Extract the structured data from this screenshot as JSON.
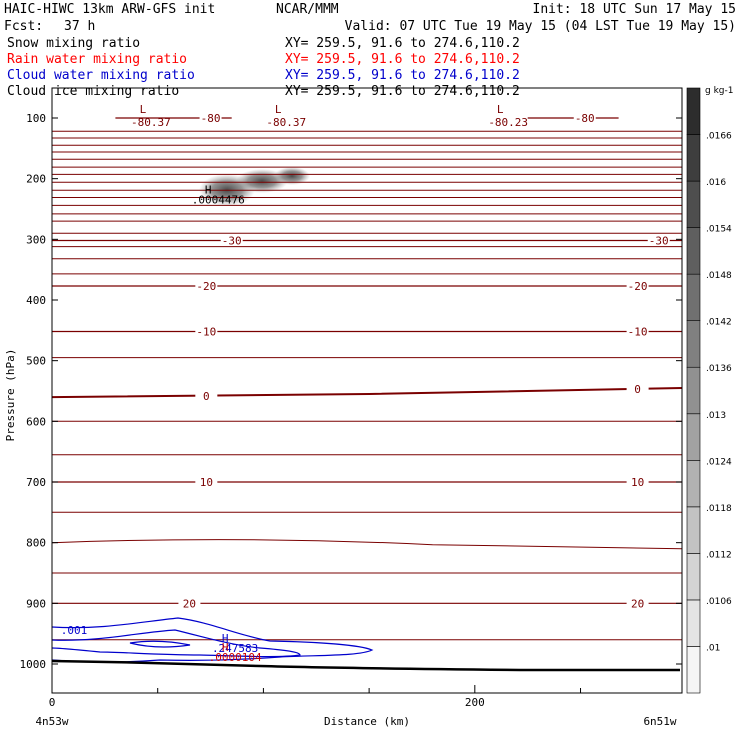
{
  "header": {
    "model": "HAIC-HIWC 13km ARW-GFS init",
    "org": "NCAR/MMM",
    "init": "Init: 18 UTC Sun 17 May 15",
    "fcst_label": "Fcst:",
    "fcst_value": "37 h",
    "valid": "Valid: 07 UTC Tue 19 May 15 (04 LST Tue 19 May 15)"
  },
  "fields": [
    {
      "name": "Snow mixing ratio",
      "xy": "XY= 259.5, 91.6 to 274.6,110.2",
      "color": "#000000"
    },
    {
      "name": "Rain water mixing ratio",
      "xy": "XY= 259.5, 91.6 to 274.6,110.2",
      "color": "#ff0000"
    },
    {
      "name": "Cloud water mixing ratio",
      "xy": "XY= 259.5, 91.6 to 274.6,110.2",
      "color": "#0000cc"
    },
    {
      "name": "Cloud ice mixing ratio",
      "xy": "XY= 259.5, 91.6 to 274.6,110.2",
      "color": "#000000"
    }
  ],
  "chart_data": {
    "type": "cross-section",
    "ylabel": "Pressure (hPa)",
    "xlabel": "Distance (km)",
    "x_start_label": "4n53w",
    "x_end_label": "6n51w",
    "xlim": [
      0,
      298
    ],
    "ylim_hpa": [
      1050,
      30
    ],
    "y_ticks": [
      100,
      200,
      300,
      400,
      500,
      600,
      700,
      800,
      900,
      1000
    ],
    "x_ticks": [
      0,
      200
    ],
    "x_minor_ticks": [
      50,
      100,
      150,
      250,
      300
    ],
    "temperature_color": "#7a0000",
    "temperature_contours": [
      {
        "value": 20,
        "label": "20",
        "points": [
          [
            0,
            900
          ],
          [
            298,
            900
          ]
        ]
      },
      {
        "value": 10,
        "label": "10",
        "points": [
          [
            0,
            700
          ],
          [
            298,
            700
          ]
        ]
      },
      {
        "value": 0,
        "label": "0",
        "points": [
          [
            0,
            560
          ],
          [
            150,
            555
          ],
          [
            298,
            545
          ]
        ]
      },
      {
        "value": -10,
        "label": "-10",
        "points": [
          [
            0,
            452
          ],
          [
            298,
            452
          ]
        ]
      },
      {
        "value": -20,
        "label": "-20",
        "points": [
          [
            0,
            377
          ],
          [
            298,
            377
          ]
        ]
      },
      {
        "value": -30,
        "label": "-30",
        "points": [
          [
            0,
            302
          ],
          [
            298,
            302
          ]
        ]
      },
      {
        "value": -80,
        "label": "-80",
        "points": [
          [
            30,
            100
          ],
          [
            85,
            100
          ]
        ]
      },
      {
        "value": -80,
        "label": "-80",
        "points": [
          [
            225,
            100
          ],
          [
            268,
            100
          ]
        ]
      }
    ],
    "temperature_labels": [
      {
        "text": "20",
        "x": 65,
        "p": 900
      },
      {
        "text": "20",
        "x": 277,
        "p": 900
      },
      {
        "text": "10",
        "x": 73,
        "p": 700
      },
      {
        "text": "10",
        "x": 277,
        "p": 700
      },
      {
        "text": "0",
        "x": 73,
        "p": 558
      },
      {
        "text": "0",
        "x": 277,
        "p": 547
      },
      {
        "text": "-10",
        "x": 73,
        "p": 452
      },
      {
        "text": "-10",
        "x": 277,
        "p": 452
      },
      {
        "text": "-20",
        "x": 73,
        "p": 377
      },
      {
        "text": "-20",
        "x": 277,
        "p": 377
      },
      {
        "text": "-30",
        "x": 85,
        "p": 302
      },
      {
        "text": "-30",
        "x": 287,
        "p": 302
      },
      {
        "text": "-80",
        "x": 75,
        "p": 100
      },
      {
        "text": "-80",
        "x": 252,
        "p": 100
      }
    ],
    "minima": [
      {
        "mark": "L",
        "value": "-80.37",
        "x": 43,
        "p": 92
      },
      {
        "mark": "L",
        "value": "-80.37",
        "x": 107,
        "p": 92
      },
      {
        "mark": "L",
        "value": "-80.23",
        "x": 212,
        "p": 92
      }
    ],
    "maxima": [
      {
        "mark": "H",
        "value": ".0004476",
        "x": 72,
        "p": 236,
        "color": "#000000"
      },
      {
        "mark": "H",
        "value": ".247583",
        "x": 80,
        "p": 975,
        "color": "#0000cc"
      },
      {
        "mark": "H",
        "value": ".0000104",
        "x": 80,
        "p": 990,
        "color": "#cc0000"
      }
    ],
    "cloud_water_contour_label": ".001",
    "colorbar_unit": "g kg-1",
    "colorbar_levels": [
      ".01",
      ".0106",
      ".0112",
      ".0118",
      ".0124",
      ".013",
      ".0136",
      ".0142",
      ".0148",
      ".0154",
      ".016",
      ".0166"
    ]
  }
}
